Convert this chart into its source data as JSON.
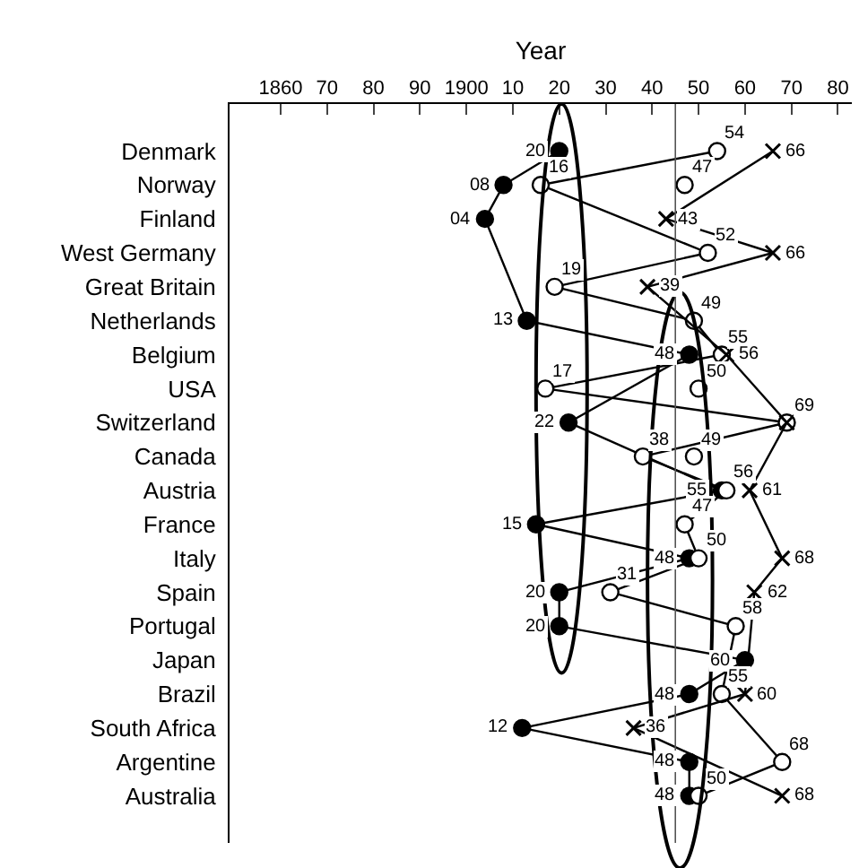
{
  "chart_data": {
    "type": "line",
    "xlabel": "Year",
    "categories": [
      "Denmark",
      "Norway",
      "Finland",
      "West Germany",
      "Great Britain",
      "Netherlands",
      "Belgium",
      "USA",
      "Switzerland",
      "Canada",
      "Austria",
      "France",
      "Italy",
      "Spain",
      "Portugal",
      "Japan",
      "Brazil",
      "South Africa",
      "Argentine",
      "Australia"
    ],
    "orientation": "horizontal",
    "xlim": [
      1849,
      1983
    ],
    "xticks": [
      {
        "value": 1860,
        "label": "1860"
      },
      {
        "value": 1870,
        "label": "70"
      },
      {
        "value": 1880,
        "label": "80"
      },
      {
        "value": 1890,
        "label": "90"
      },
      {
        "value": 1900,
        "label": "1900"
      },
      {
        "value": 1910,
        "label": "10"
      },
      {
        "value": 1920,
        "label": "20"
      },
      {
        "value": 1930,
        "label": "30"
      },
      {
        "value": 1940,
        "label": "40"
      },
      {
        "value": 1950,
        "label": "50"
      },
      {
        "value": 1960,
        "label": "60"
      },
      {
        "value": 1970,
        "label": "70"
      },
      {
        "value": 1980,
        "label": "80"
      }
    ],
    "series": [
      {
        "color": "#000000",
        "marker": "circle",
        "values": [
          1920,
          1908,
          1904,
          null,
          null,
          1913,
          1948,
          null,
          1922,
          null,
          1955,
          1915,
          1948,
          1920,
          1920,
          1960,
          1948,
          1912,
          1948,
          1948
        ],
        "value_labels": [
          "20",
          "08",
          "04",
          null,
          null,
          "13",
          "48",
          null,
          "22",
          null,
          "55",
          "15",
          "48",
          "20",
          "20",
          "60",
          "48",
          "12",
          "48",
          "48"
        ]
      },
      {
        "color": "#ffffff",
        "marker": "circle",
        "values": [
          1954,
          1916,
          null,
          1952,
          1919,
          1949,
          1955,
          1917,
          1969,
          1938,
          1956,
          1947,
          1950,
          1931,
          1958,
          null,
          1955,
          null,
          1968,
          1950
        ],
        "value_labels": [
          "54",
          "16",
          null,
          "52",
          "19",
          "49",
          "55",
          "17",
          "69",
          "38",
          "56",
          "47",
          "50",
          "31",
          "58",
          null,
          "55",
          null,
          "68",
          "50"
        ]
      },
      {
        "type": "scatter",
        "color": "#ffffff",
        "marker": "circle",
        "values": [
          null,
          1947,
          null,
          null,
          null,
          null,
          null,
          1950,
          null,
          1949,
          null,
          null,
          null,
          null,
          null,
          null,
          null,
          null,
          null,
          null
        ],
        "value_labels": [
          null,
          "47",
          null,
          null,
          null,
          null,
          null,
          "50",
          null,
          "49",
          null,
          null,
          null,
          null,
          null,
          null,
          null,
          null,
          null,
          null
        ]
      },
      {
        "color": "#000000",
        "marker": "cross",
        "values": [
          1966,
          null,
          1943,
          1966,
          1939,
          null,
          1956,
          null,
          1969,
          null,
          1961,
          null,
          1968,
          1962,
          null,
          null,
          1960,
          1936,
          null,
          1968
        ],
        "value_labels": [
          "66",
          null,
          "43",
          "66",
          "39",
          null,
          "56",
          null,
          null,
          null,
          "61",
          null,
          "68",
          "62",
          null,
          null,
          "60",
          "36",
          null,
          "68"
        ]
      }
    ],
    "ref_lines": [
      {
        "axis": "x",
        "value": 1945
      }
    ],
    "tick_labels": "x",
    "grid": false
  }
}
